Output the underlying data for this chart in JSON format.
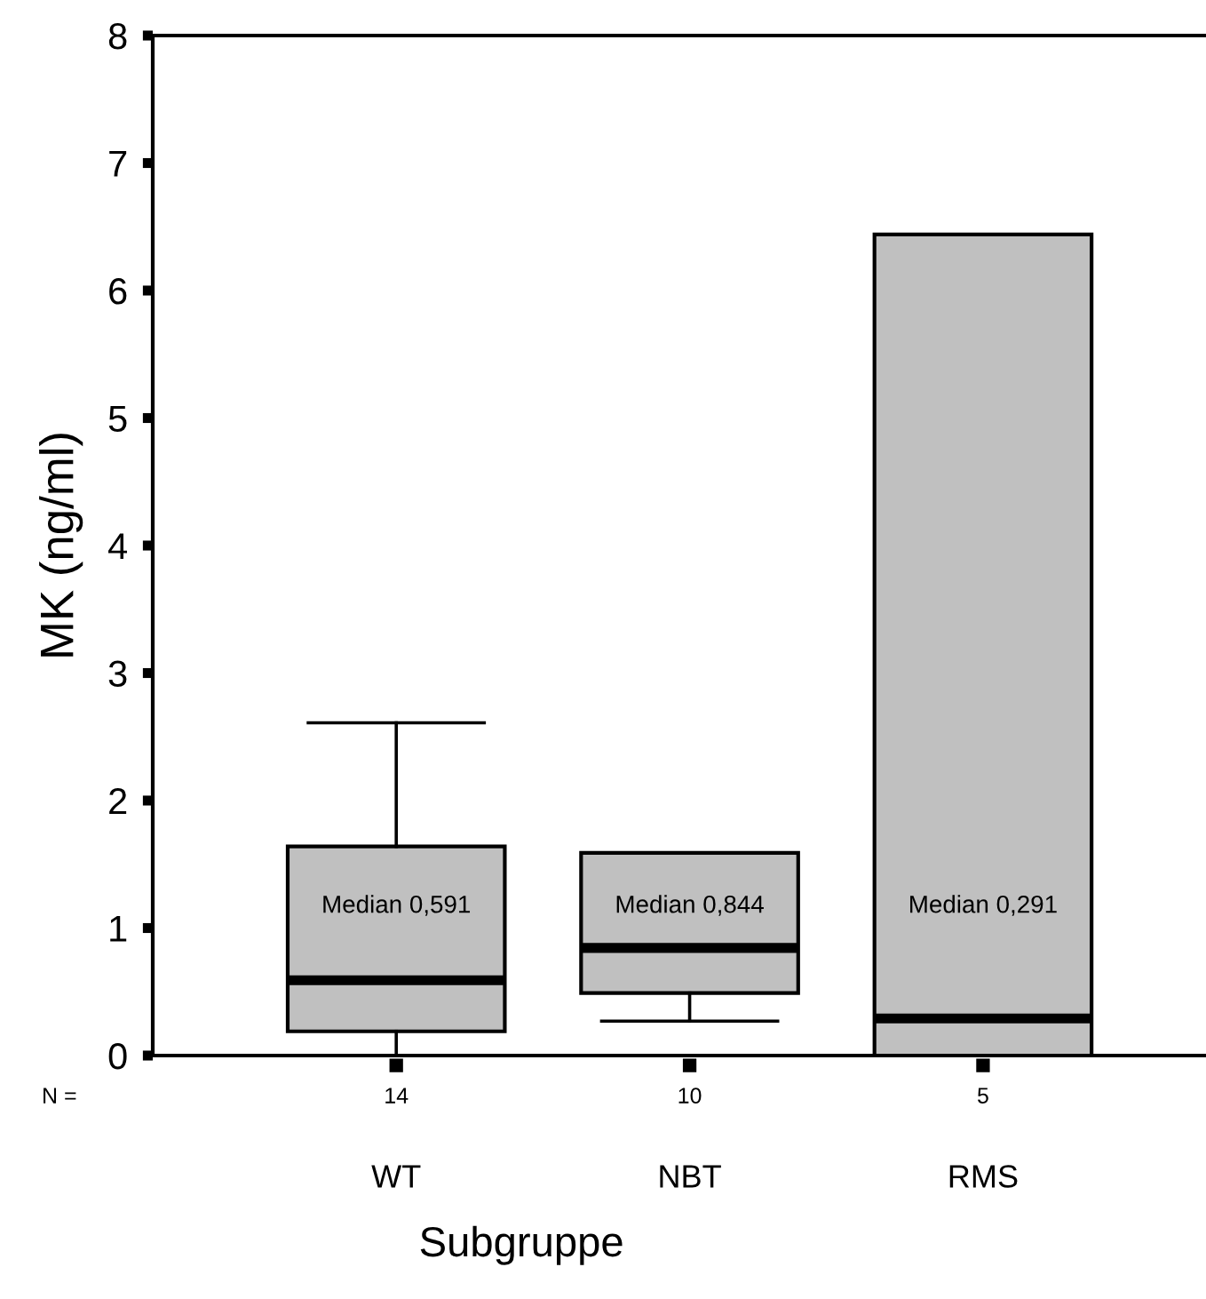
{
  "chart_data": {
    "type": "box",
    "xlabel": "Subgruppe",
    "ylabel": "MK (ng/ml)",
    "categories": [
      "WT",
      "NBT",
      "RMS"
    ],
    "boxes": [
      {
        "low": 0,
        "q1": 0.19,
        "median": 0.591,
        "q3": 1.64,
        "high": 2.61
      },
      {
        "low": 0.27,
        "q1": 0.49,
        "median": 0.844,
        "q3": 1.59,
        "high": 1.59
      },
      {
        "low": 0,
        "q1": 0,
        "median": 0.291,
        "q3": 6.44,
        "high": 6.44
      }
    ],
    "color": "#c0c0c0",
    "ylim": [
      0,
      8
    ],
    "yticks": [
      0,
      1,
      2,
      3,
      4,
      5,
      6,
      7,
      8
    ],
    "grid": false,
    "annotations": [
      "Median 0,591",
      "Median 0,844",
      "Median 0,291",
      "N =",
      "14",
      "10",
      "5"
    ]
  }
}
